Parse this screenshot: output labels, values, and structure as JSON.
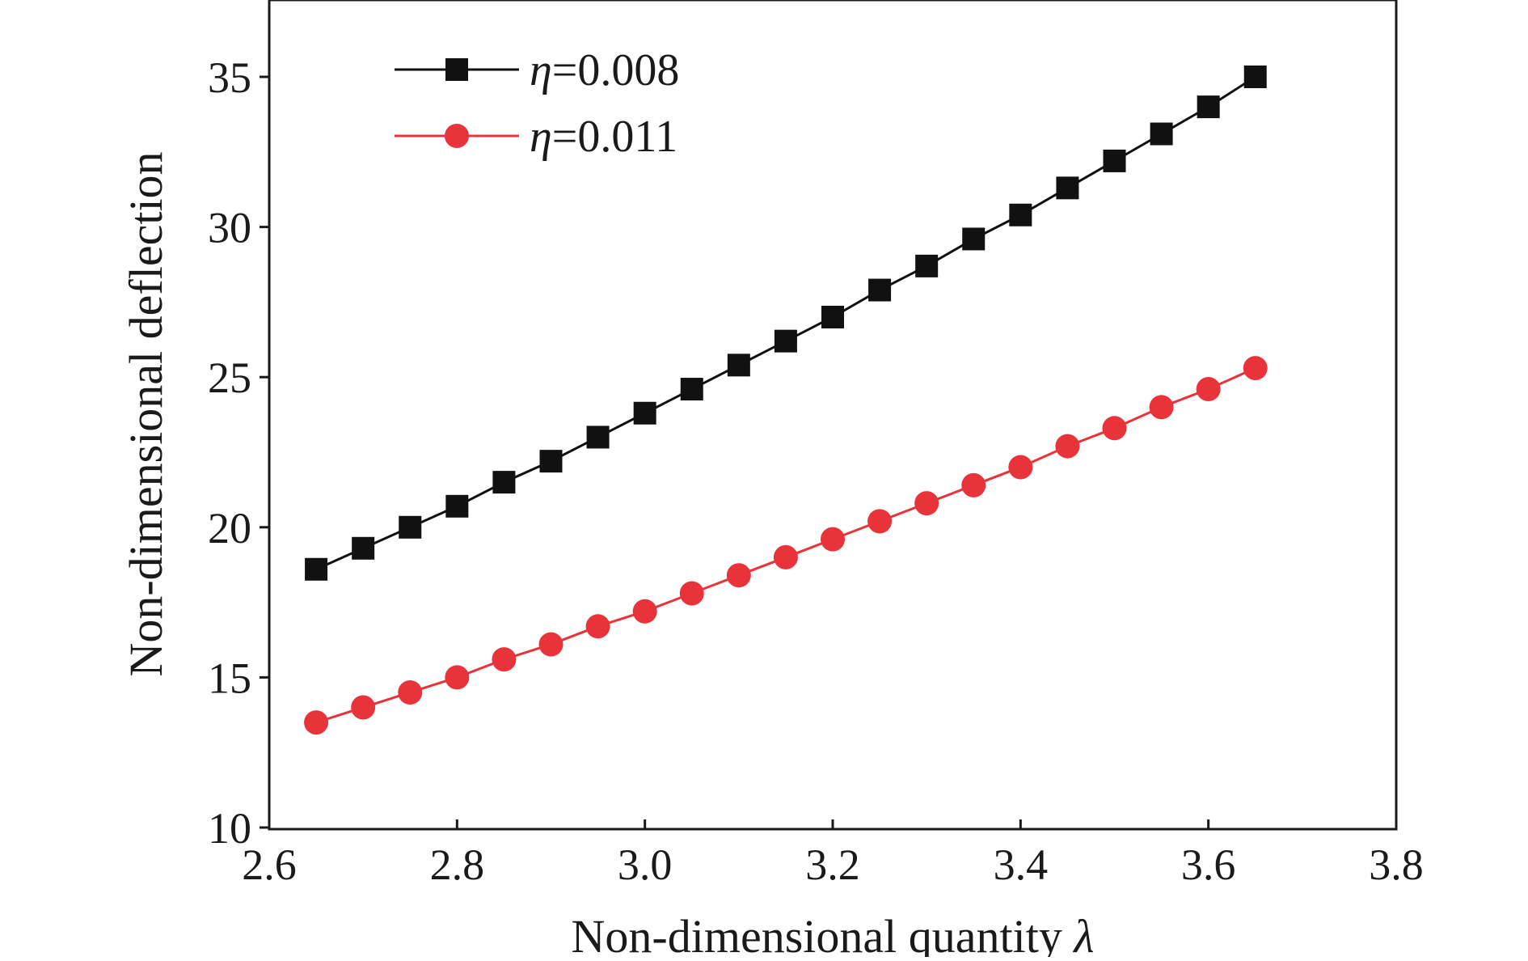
{
  "chart_data": {
    "type": "line",
    "title": "",
    "xlabel": "Non-dimensional quantity",
    "xlabel_symbol": "λ",
    "ylabel": "Non-dimensional deflection",
    "xlim": [
      2.6,
      3.8
    ],
    "ylim": [
      10,
      37
    ],
    "x_ticks": [
      2.6,
      2.8,
      3.0,
      3.2,
      3.4,
      3.6,
      3.8
    ],
    "x_tick_labels": [
      "2.6",
      "2.8",
      "3.0",
      "3.2",
      "3.4",
      "3.6",
      "3.8"
    ],
    "y_ticks": [
      10,
      15,
      20,
      25,
      30,
      35
    ],
    "y_tick_labels": [
      "10",
      "15",
      "20",
      "25",
      "30",
      "35"
    ],
    "grid": false,
    "legend_position": "top-left",
    "x": [
      2.65,
      2.7,
      2.75,
      2.8,
      2.85,
      2.9,
      2.95,
      3.0,
      3.05,
      3.1,
      3.15,
      3.2,
      3.25,
      3.3,
      3.35,
      3.4,
      3.45,
      3.5,
      3.55,
      3.6,
      3.65
    ],
    "series": [
      {
        "name": "=0.008",
        "symbol": "η",
        "color": "#111111",
        "marker": "square",
        "values": [
          18.6,
          19.3,
          20.0,
          20.7,
          21.5,
          22.2,
          23.0,
          23.8,
          24.6,
          25.4,
          26.2,
          27.0,
          27.9,
          28.7,
          29.6,
          30.4,
          31.3,
          32.2,
          33.1,
          34.0,
          35.0
        ]
      },
      {
        "name": "=0.011",
        "symbol": "η",
        "color": "#e8333a",
        "marker": "circle",
        "values": [
          13.5,
          14.0,
          14.5,
          15.0,
          15.6,
          16.1,
          16.7,
          17.2,
          17.8,
          18.4,
          19.0,
          19.6,
          20.2,
          20.8,
          21.4,
          22.0,
          22.7,
          23.3,
          24.0,
          24.6,
          25.3
        ]
      }
    ]
  }
}
